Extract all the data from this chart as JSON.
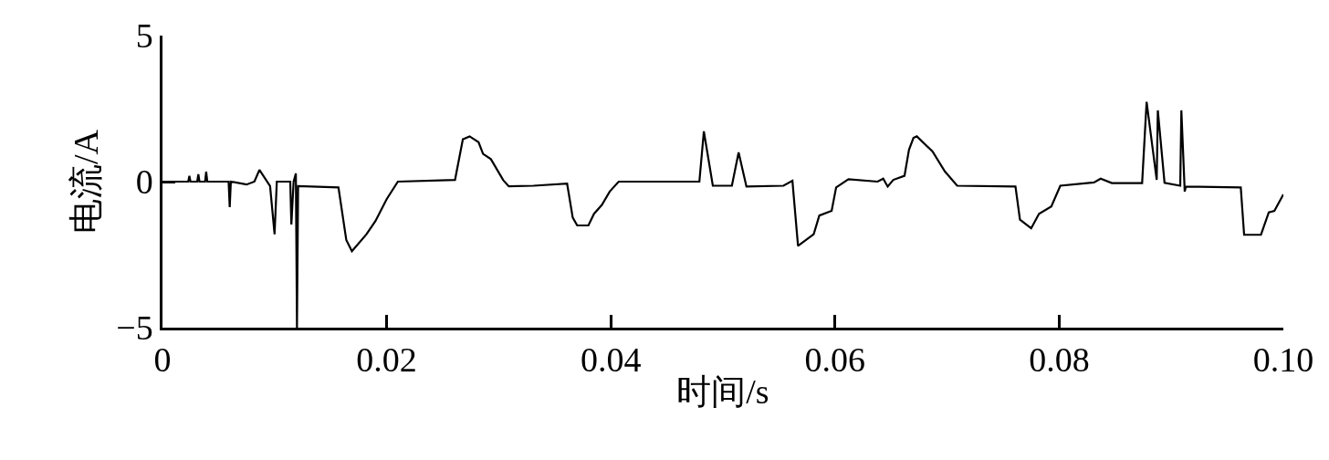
{
  "chart_data": {
    "type": "line",
    "xlabel": "时间/s",
    "ylabel": "电流/A",
    "xlim": [
      0,
      0.1
    ],
    "ylim": [
      -5,
      5
    ],
    "xticks": [
      0,
      0.02,
      0.04,
      0.06,
      0.08,
      {
        "value": 0.1,
        "label": "0.10"
      }
    ],
    "yticks": [
      5,
      0,
      {
        "value": -5,
        "label": "−5"
      }
    ],
    "marker": "none",
    "line_style": "solid",
    "series": [
      {
        "color": "#000000",
        "x": [
          0.0002,
          0.0023,
          0.0024,
          0.0025,
          0.0031,
          0.0032,
          0.0033,
          0.0038,
          0.0039,
          0.004,
          0.0059,
          0.006,
          0.0061,
          0.0075,
          0.0082,
          0.00865,
          0.0096,
          0.01,
          0.0102,
          0.0114,
          0.0115,
          0.0117,
          0.0119,
          0.012,
          0.0121,
          0.0157,
          0.0164,
          0.0169,
          0.0182,
          0.019,
          0.02,
          0.021,
          0.0261,
          0.0268,
          0.0274,
          0.0282,
          0.0286,
          0.0293,
          0.0304,
          0.0309,
          0.0331,
          0.0361,
          0.0366,
          0.037,
          0.038,
          0.0385,
          0.0392,
          0.0399,
          0.0407,
          0.0479,
          0.0483,
          0.0491,
          0.0508,
          0.0514,
          0.0521,
          0.0554,
          0.0562,
          0.0567,
          0.0581,
          0.0586,
          0.0597,
          0.0601,
          0.0612,
          0.0638,
          0.0643,
          0.0647,
          0.0652,
          0.0662,
          0.0666,
          0.067,
          0.0673,
          0.0687,
          0.0698,
          0.0709,
          0.0761,
          0.0765,
          0.0775,
          0.0782,
          0.0793,
          0.0801,
          0.0831,
          0.0837,
          0.0847,
          0.0874,
          0.0878,
          0.0887,
          0.0888,
          0.0894,
          0.0908,
          0.0909,
          0.0912,
          0.0913,
          0.0962,
          0.0965,
          0.098,
          0.0987,
          0.0992,
          0.1
        ],
        "values": [
          0,
          0,
          0.2,
          0,
          0,
          0.25,
          0,
          0,
          0.34,
          0,
          0,
          -0.87,
          0,
          -0.1,
          0,
          0.4,
          -0.15,
          -1.8,
          0,
          0,
          -1.47,
          0,
          0.28,
          -5,
          -0.15,
          -0.2,
          -2.0,
          -2.38,
          -1.8,
          -1.35,
          -0.6,
          0,
          0.06,
          1.45,
          1.55,
          1.35,
          0.95,
          0.77,
          0.05,
          -0.16,
          -0.14,
          -0.07,
          -1.23,
          -1.5,
          -1.5,
          -1.1,
          -0.8,
          -0.34,
          0,
          0,
          1.72,
          -0.14,
          -0.14,
          1.0,
          -0.17,
          -0.14,
          0.03,
          -2.2,
          -1.8,
          -1.16,
          -1.0,
          -0.2,
          0.08,
          0,
          0.1,
          -0.17,
          0.06,
          0.2,
          1.09,
          1.5,
          1.55,
          1.03,
          0.35,
          -0.14,
          -0.17,
          -1.3,
          -1.6,
          -1.1,
          -0.85,
          -0.14,
          -0.03,
          0.1,
          -0.05,
          -0.05,
          2.73,
          0.06,
          2.44,
          -0.04,
          -0.14,
          2.44,
          -0.34,
          -0.17,
          -0.2,
          -1.82,
          -1.82,
          -1.05,
          -1.0,
          -0.44
        ]
      }
    ]
  }
}
